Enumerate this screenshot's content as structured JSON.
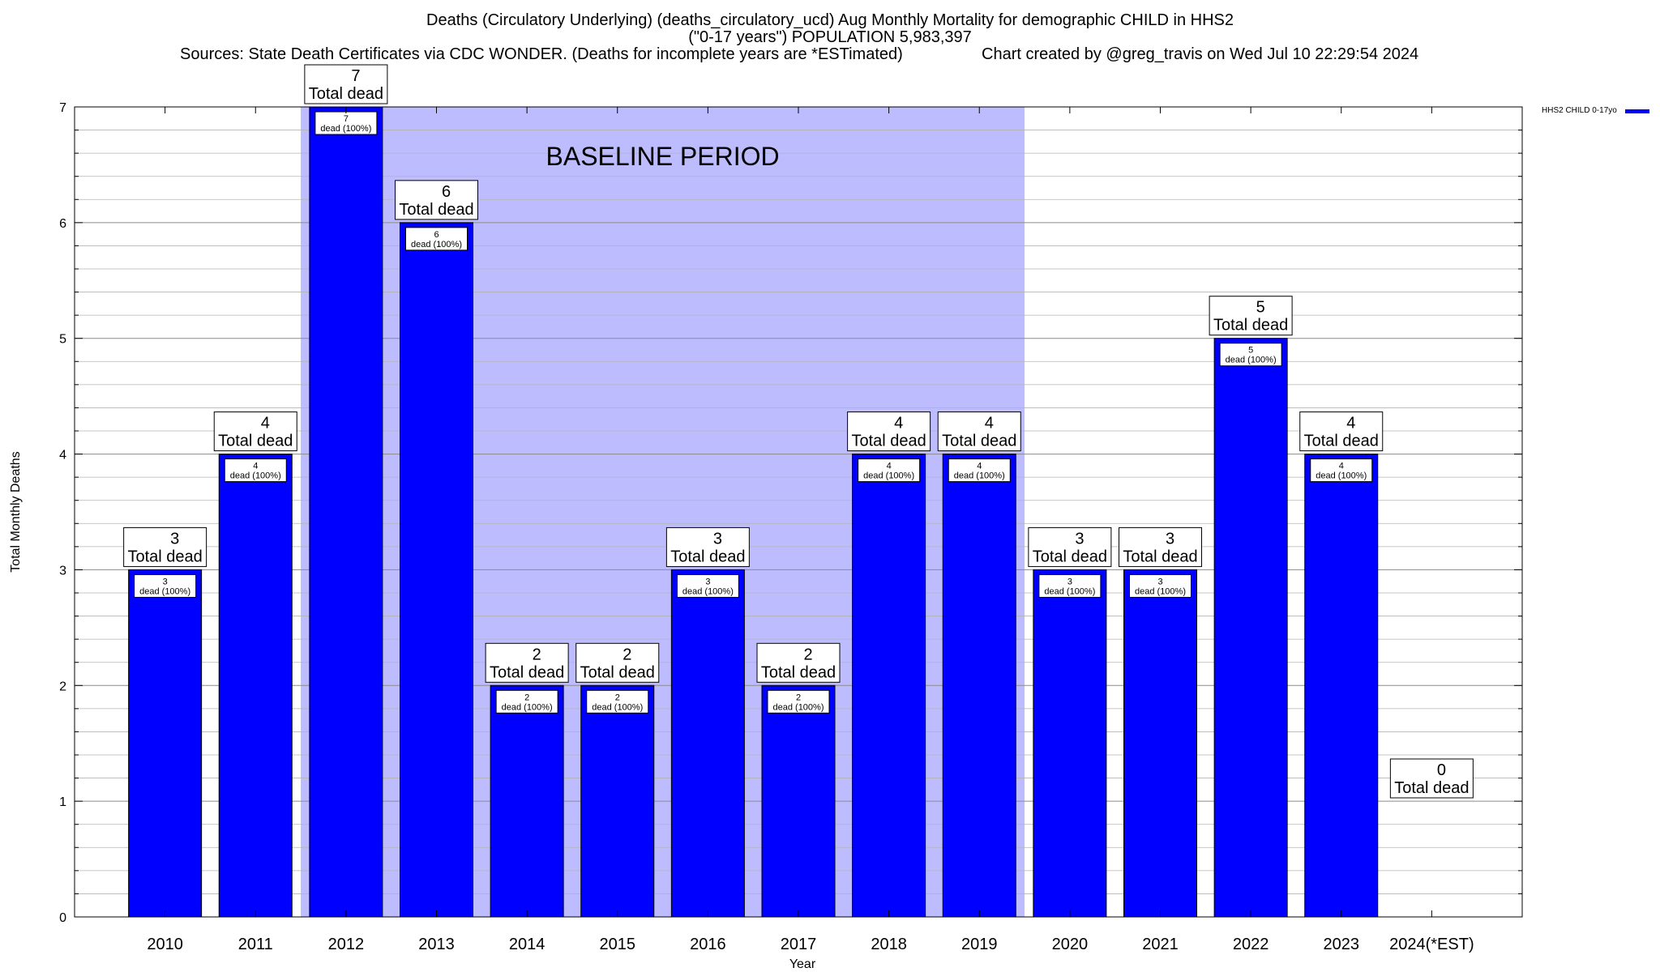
{
  "header": {
    "line1": "Deaths (Circulatory Underlying) (deaths_circulatory_ucd) Aug Monthly Mortality for demographic CHILD in HHS2",
    "line2": "(\"0-17 years\") POPULATION 5,983,397",
    "sources": "Sources: State Death Certificates via CDC WONDER. (Deaths for incomplete years are *ESTimated)",
    "credit": "Chart created by @greg_travis on Wed Jul 10 22:29:54 2024"
  },
  "chart_data": {
    "type": "bar",
    "title": "Deaths (Circulatory Underlying) (deaths_circulatory_ucd) Aug Monthly Mortality for demographic CHILD in HHS2",
    "xlabel": "Year",
    "ylabel": "Total Monthly Deaths",
    "ylim": [
      0,
      7
    ],
    "yticks": [
      "0",
      "1",
      "2",
      "3",
      "4",
      "5",
      "6",
      "7"
    ],
    "grid": true,
    "legend_position": "top-right",
    "categories": [
      "2010",
      "2011",
      "2012",
      "2013",
      "2014",
      "2015",
      "2016",
      "2017",
      "2018",
      "2019",
      "2020",
      "2021",
      "2022",
      "2023",
      "2024(*EST)"
    ],
    "series": [
      {
        "name": "HHS2 CHILD 0-17yo",
        "color": "#0000ff",
        "values": [
          3,
          4,
          7,
          6,
          2,
          2,
          3,
          2,
          4,
          4,
          3,
          3,
          5,
          4,
          0
        ]
      }
    ],
    "total_label": "Total dead",
    "inner_label_suffix": "dead (100%)",
    "baseline": {
      "label": "BASELINE PERIOD",
      "from": "2012",
      "to": "2019",
      "color": "#bcbcff"
    }
  }
}
